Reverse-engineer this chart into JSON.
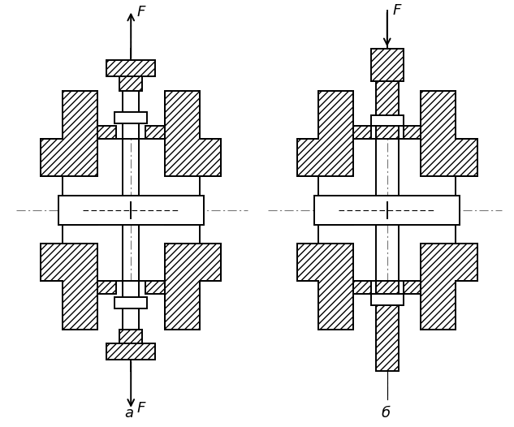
{
  "bg_color": "#ffffff",
  "lc": "#000000",
  "hp": "////",
  "lw": 1.4,
  "lw_thin": 0.8,
  "label_a": "а",
  "label_b": "б",
  "label_F": "F",
  "fig_w": 6.33,
  "fig_h": 5.26,
  "dpi": 100
}
